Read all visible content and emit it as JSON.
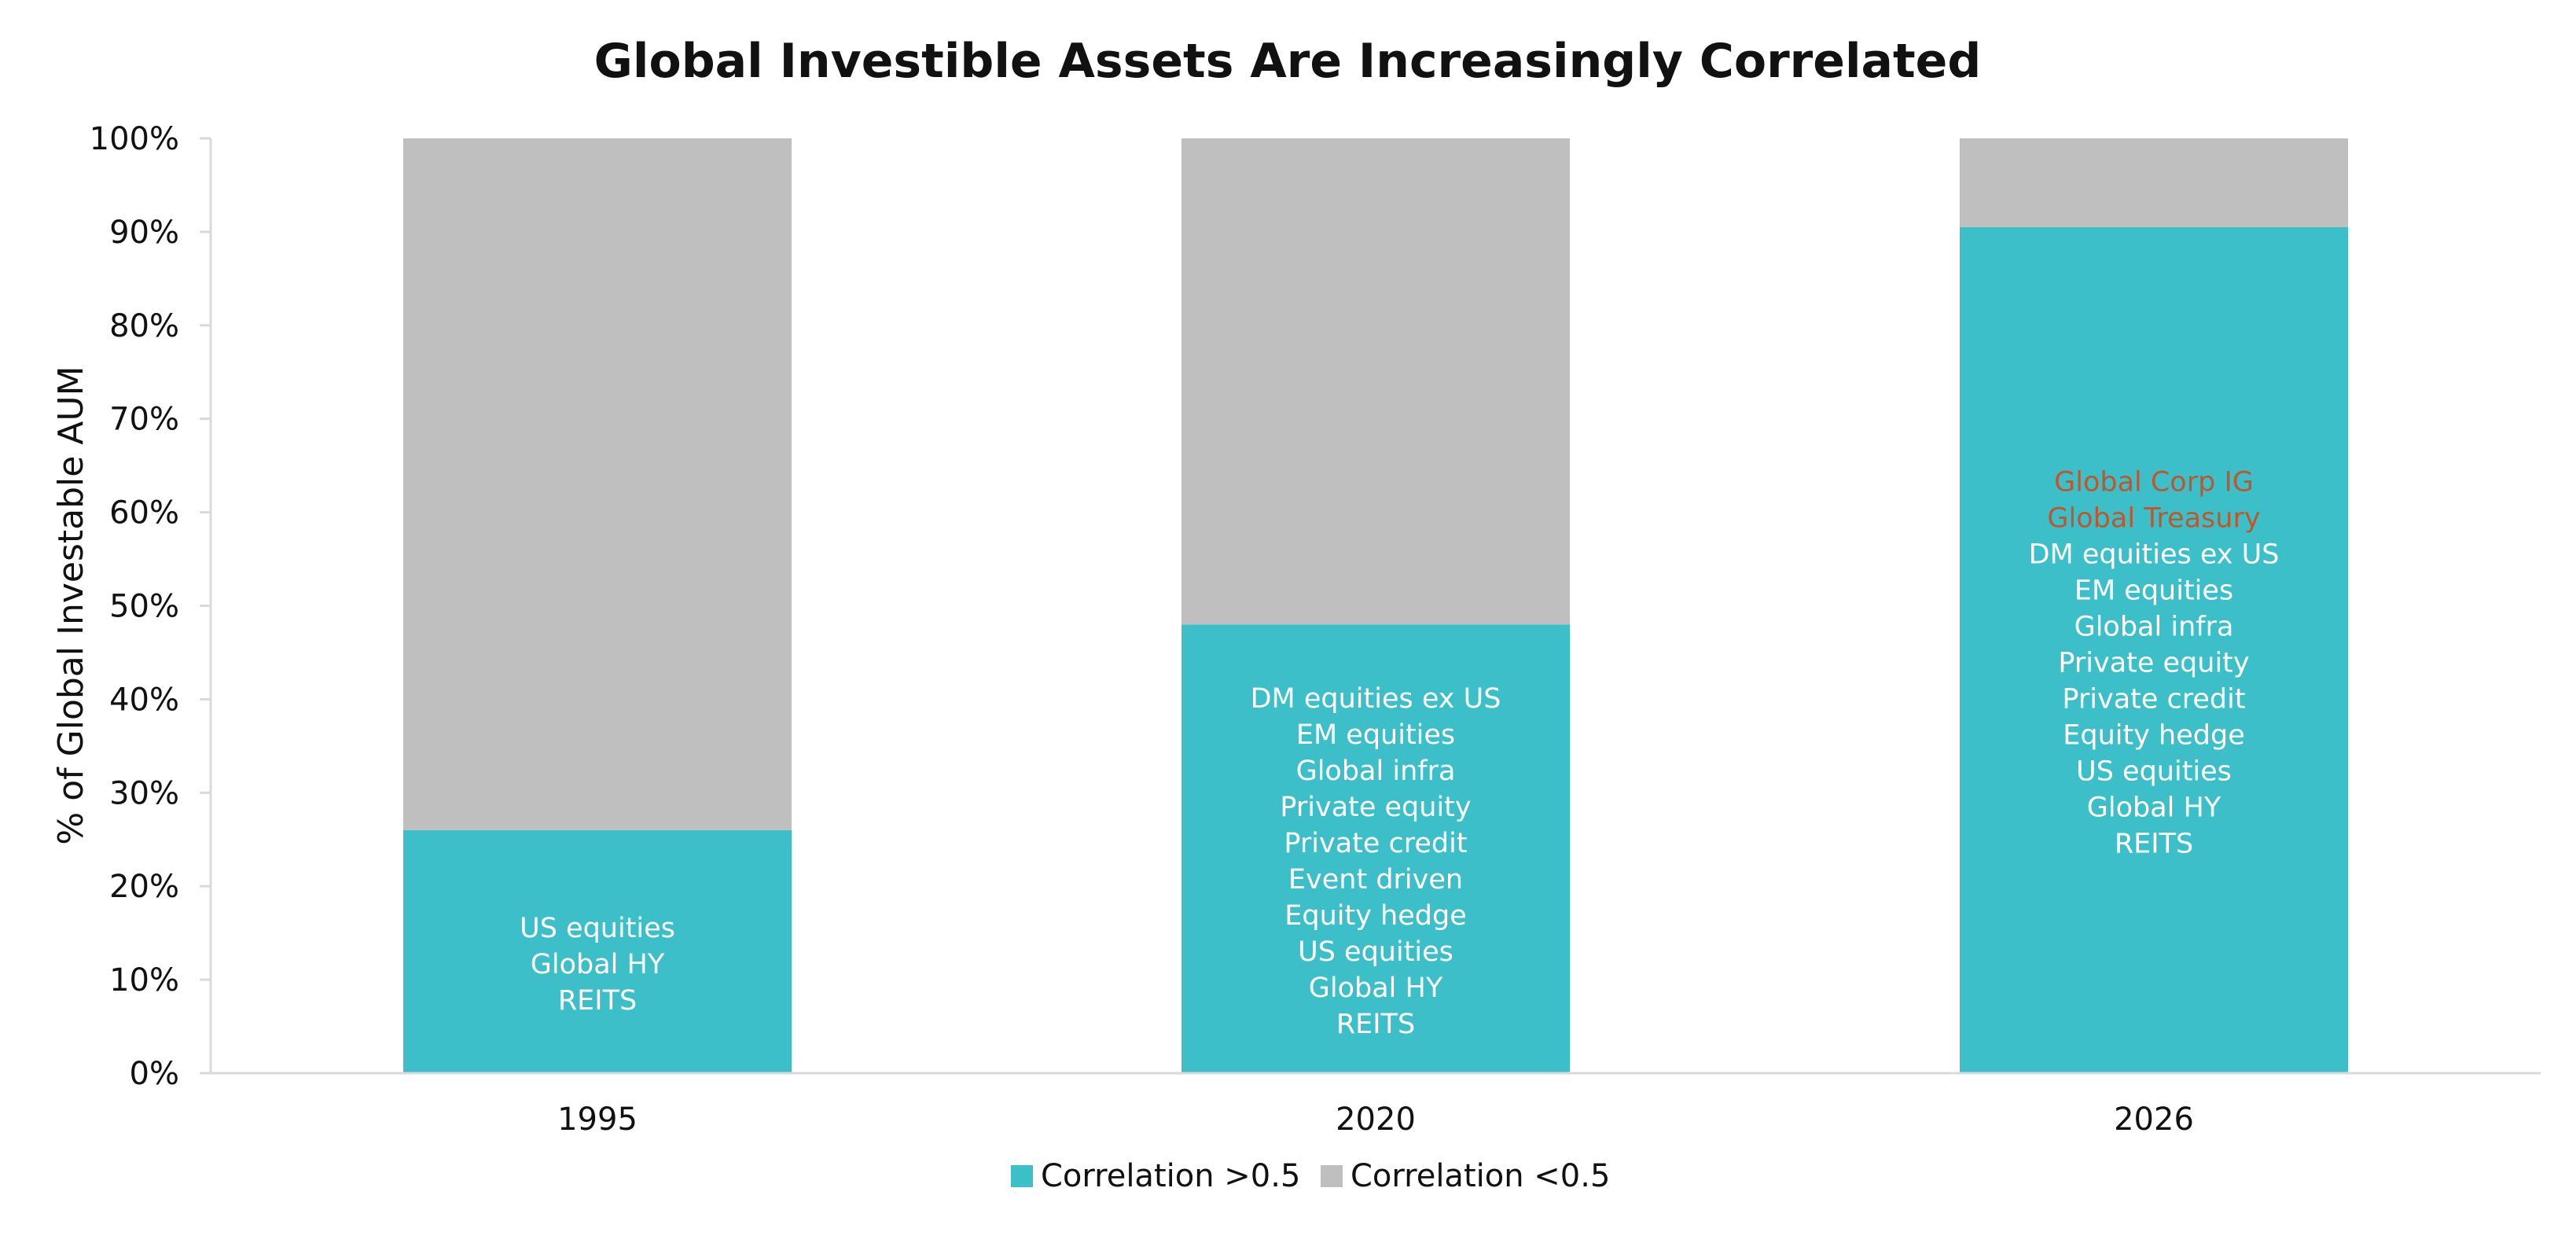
{
  "chart_data": {
    "type": "bar",
    "stacked": true,
    "title": "Global Investible Assets Are Increasingly Correlated",
    "xlabel": "",
    "ylabel": "% of Global Investable AUM",
    "ylim": [
      0,
      100
    ],
    "y_ticks": [
      "0%",
      "10%",
      "20%",
      "30%",
      "40%",
      "50%",
      "60%",
      "70%",
      "80%",
      "90%",
      "100%"
    ],
    "categories": [
      "1995",
      "2020",
      "2026"
    ],
    "series": [
      {
        "name": "Correlation >0.5",
        "color": "#3DBFC9",
        "values": [
          26,
          48,
          90.5
        ]
      },
      {
        "name": "Correlation <0.5",
        "color": "#BFBFBF",
        "values": [
          74,
          52,
          9.5
        ]
      }
    ],
    "legend_position": "bottom",
    "grid": false,
    "annotations": [
      {
        "category": "1995",
        "lines": [
          {
            "text": "US equities",
            "color": "#FFFFFF"
          },
          {
            "text": "Global HY",
            "color": "#FFFFFF"
          },
          {
            "text": "REITS",
            "color": "#FFFFFF"
          }
        ]
      },
      {
        "category": "2020",
        "lines": [
          {
            "text": "DM equities ex US",
            "color": "#FFFFFF"
          },
          {
            "text": "EM equities",
            "color": "#FFFFFF"
          },
          {
            "text": "Global infra",
            "color": "#FFFFFF"
          },
          {
            "text": "Private equity",
            "color": "#FFFFFF"
          },
          {
            "text": "Private credit",
            "color": "#FFFFFF"
          },
          {
            "text": "Event driven",
            "color": "#FFFFFF"
          },
          {
            "text": "Equity hedge",
            "color": "#FFFFFF"
          },
          {
            "text": "US equities",
            "color": "#FFFFFF"
          },
          {
            "text": "Global HY",
            "color": "#FFFFFF"
          },
          {
            "text": "REITS",
            "color": "#FFFFFF"
          }
        ]
      },
      {
        "category": "2026",
        "lines": [
          {
            "text": "Global Corp IG",
            "color": "#C0572B"
          },
          {
            "text": "Global Treasury",
            "color": "#C0572B"
          },
          {
            "text": "DM equities ex US",
            "color": "#FFFFFF"
          },
          {
            "text": "EM equities",
            "color": "#FFFFFF"
          },
          {
            "text": "Global infra",
            "color": "#FFFFFF"
          },
          {
            "text": "Private equity",
            "color": "#FFFFFF"
          },
          {
            "text": "Private credit",
            "color": "#FFFFFF"
          },
          {
            "text": "Equity hedge",
            "color": "#FFFFFF"
          },
          {
            "text": "US equities",
            "color": "#FFFFFF"
          },
          {
            "text": "Global HY",
            "color": "#FFFFFF"
          },
          {
            "text": "REITS",
            "color": "#FFFFFF"
          }
        ]
      }
    ]
  }
}
